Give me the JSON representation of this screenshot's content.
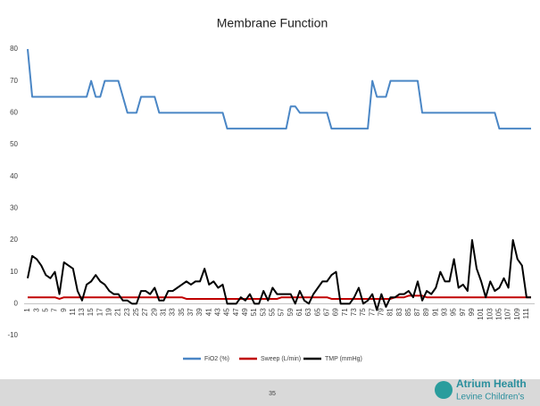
{
  "chart_data": {
    "type": "line",
    "title": "Membrane Function",
    "categories": [
      "1",
      null,
      "3",
      null,
      "5",
      null,
      "7",
      null,
      "9",
      null,
      "11",
      null,
      "13",
      null,
      "15",
      null,
      "17",
      null,
      "19",
      null,
      "21",
      null,
      "23",
      null,
      "25",
      null,
      "27",
      null,
      "29",
      null,
      "31",
      null,
      "33",
      null,
      "35",
      null,
      "37",
      null,
      "39",
      null,
      "41",
      null,
      "43",
      null,
      "45",
      null,
      "47",
      null,
      "49",
      null,
      "51",
      null,
      "53",
      null,
      "55",
      null,
      "57",
      null,
      "59",
      null,
      "61",
      null,
      "63",
      null,
      "65",
      null,
      "67",
      null,
      "69",
      null,
      "71",
      null,
      "73",
      null,
      "75",
      null,
      "77",
      null,
      "79",
      null,
      "81",
      null,
      "83",
      null,
      "85",
      null,
      "87",
      null,
      "89",
      null,
      "91",
      null,
      "93",
      null,
      "95",
      null,
      "97",
      null,
      "99",
      null,
      "101",
      null,
      "103",
      null,
      "105",
      null,
      "107",
      null,
      "109",
      null,
      "111",
      null
    ],
    "series": [
      {
        "name": "FiO2 (%)",
        "color": "#4a86c5",
        "values": [
          80,
          65,
          65,
          65,
          65,
          65,
          65,
          65,
          65,
          65,
          65,
          65,
          65,
          65,
          70,
          65,
          65,
          70,
          70,
          70,
          70,
          65,
          60,
          60,
          60,
          65,
          65,
          65,
          65,
          60,
          60,
          60,
          60,
          60,
          60,
          60,
          60,
          60,
          60,
          60,
          60,
          60,
          60,
          60,
          55,
          55,
          55,
          55,
          55,
          55,
          55,
          55,
          55,
          55,
          55,
          55,
          55,
          55,
          62,
          62,
          60,
          60,
          60,
          60,
          60,
          60,
          60,
          55,
          55,
          55,
          55,
          55,
          55,
          55,
          55,
          55,
          70,
          65,
          65,
          65,
          70,
          70,
          70,
          70,
          70,
          70,
          70,
          60,
          60,
          60,
          60,
          60,
          60,
          60,
          60,
          60,
          60,
          60,
          60,
          60,
          60,
          60,
          60,
          60,
          55,
          55,
          55,
          55,
          55,
          55,
          55,
          55
        ]
      },
      {
        "name": "Sweep (L/min)",
        "color": "#c00000",
        "values": [
          2,
          2,
          2,
          2,
          2,
          2,
          2,
          1.5,
          2,
          2,
          2,
          2,
          2,
          2,
          2,
          2,
          2,
          2,
          2,
          2,
          2,
          2,
          2,
          2,
          2,
          2,
          2,
          2,
          2,
          2,
          2,
          2,
          2,
          2,
          2,
          1.5,
          1.5,
          1.5,
          1.5,
          1.5,
          1.5,
          1.5,
          1.5,
          1.5,
          1.5,
          1.5,
          1.5,
          1.5,
          1.5,
          1.5,
          1.5,
          1.5,
          1.5,
          1.5,
          1.5,
          1.5,
          2,
          2,
          2,
          2,
          2,
          2,
          2,
          2,
          2,
          2,
          2,
          1.5,
          1.5,
          1.5,
          1.5,
          1.5,
          1.5,
          1.5,
          1.5,
          1.5,
          1.5,
          1.5,
          1.5,
          1.5,
          1.5,
          2,
          2,
          2,
          2.5,
          2.5,
          2.5,
          2.5,
          2,
          2,
          2,
          2,
          2,
          2,
          2,
          2,
          2,
          2,
          2,
          2,
          2,
          2,
          2,
          2,
          2,
          2,
          2,
          2,
          2,
          2,
          2,
          2
        ]
      },
      {
        "name": "TMP (mmHg)",
        "color": "#000000",
        "values": [
          8,
          15,
          14,
          12,
          9,
          8,
          10,
          3,
          13,
          12,
          11,
          4,
          1,
          6,
          7,
          9,
          7,
          6,
          4,
          3,
          3,
          1,
          1,
          0,
          0,
          4,
          4,
          3,
          5,
          1,
          1,
          4,
          4,
          5,
          6,
          7,
          6,
          7,
          7,
          11,
          6,
          7,
          5,
          6,
          0,
          0,
          0,
          2,
          1,
          3,
          0,
          0,
          4,
          1,
          5,
          3,
          3,
          3,
          3,
          0,
          4,
          1,
          0,
          3,
          5,
          7,
          7,
          9,
          10,
          0,
          0,
          0,
          2,
          5,
          0,
          1,
          3,
          -2,
          3,
          -1,
          2,
          2,
          3,
          3,
          4,
          2,
          7,
          1,
          4,
          3,
          5,
          10,
          7,
          7,
          14,
          5,
          6,
          4,
          20,
          11,
          7,
          2,
          7,
          4,
          5,
          8,
          5,
          20,
          14,
          12,
          2,
          2
        ]
      }
    ],
    "ylim": [
      -10,
      80
    ],
    "yticks": [
      -10,
      0,
      10,
      20,
      30,
      40,
      50,
      60,
      70,
      80
    ],
    "legend": "bottom"
  },
  "footer": {
    "page_number": "35",
    "logo_line1": "Atrium Health",
    "logo_line2": "Levine Children's"
  }
}
